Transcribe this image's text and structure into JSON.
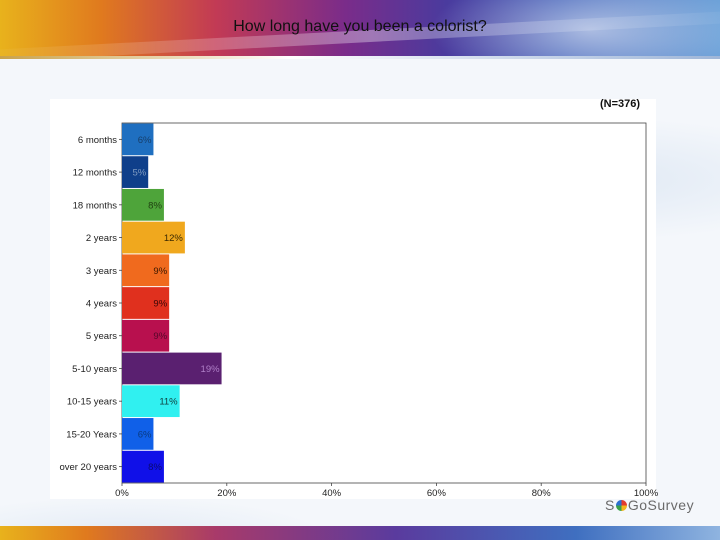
{
  "title": "How long have you been a colorist?",
  "sample_label": "(N=376)",
  "logo": {
    "left": "S",
    "right": "GoSurvey"
  },
  "chart_data": {
    "type": "bar",
    "orientation": "horizontal",
    "categories": [
      "6 months",
      "12 months",
      "18 months",
      "2 years",
      "3 years",
      "4 years",
      "5 years",
      "5-10 years",
      "10-15 years",
      "15-20 Years",
      "over 20 years"
    ],
    "values": [
      6,
      5,
      8,
      12,
      9,
      9,
      9,
      19,
      11,
      6,
      8
    ],
    "value_labels": [
      "6%",
      "5%",
      "8%",
      "12%",
      "9%",
      "9%",
      "9%",
      "19%",
      "11%",
      "6%",
      "8%"
    ],
    "colors": [
      "#1f6fc0",
      "#0f3f8a",
      "#4ea43a",
      "#f0a81e",
      "#f06a1e",
      "#e0301e",
      "#b8104e",
      "#5a2070",
      "#30f0f0",
      "#1060e8",
      "#1010e8"
    ],
    "label_colors": [
      "#173f6a",
      "#7f9ac0",
      "#1f3f10",
      "#3a2800",
      "#3a1800",
      "#3a0808",
      "#55082a",
      "#b080c8",
      "#0f4040",
      "#0a3a80",
      "#0a0a70"
    ],
    "xlim": [
      0,
      100
    ],
    "xticks": [
      0,
      20,
      40,
      60,
      80,
      100
    ],
    "xtick_labels": [
      "0%",
      "20%",
      "40%",
      "60%",
      "80%",
      "100%"
    ],
    "grid": false,
    "legend": "none"
  }
}
